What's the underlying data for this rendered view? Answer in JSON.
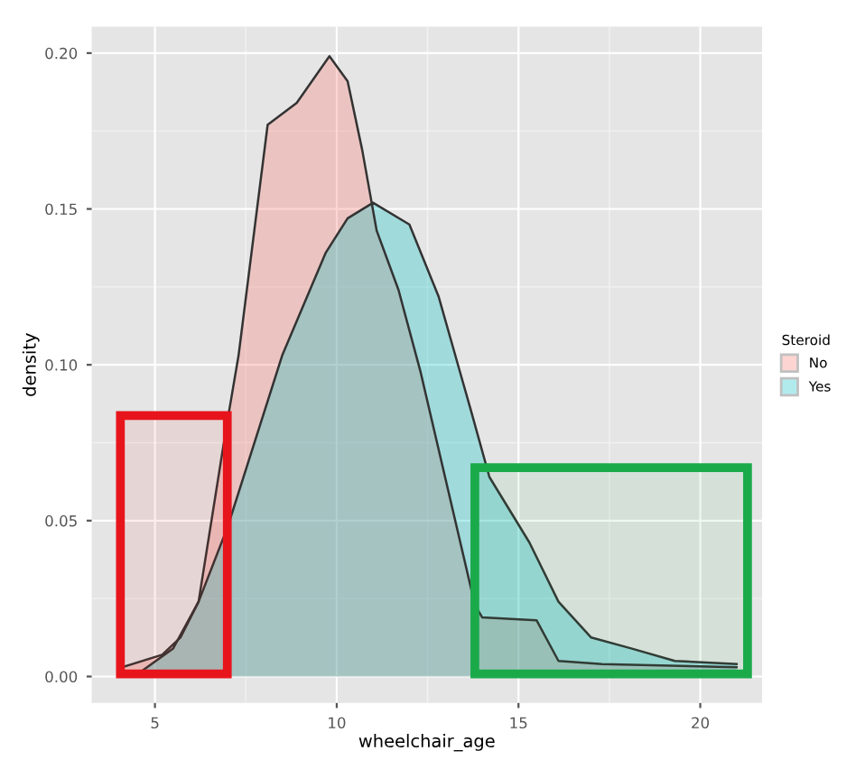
{
  "chart_data": {
    "type": "area",
    "xlabel": "wheelchair_age",
    "ylabel": "density",
    "legend_title": "Steroid",
    "legend": "right",
    "grid": true,
    "xlim": [
      3.26,
      21.7
    ],
    "ylim": [
      -0.0085,
      0.2085
    ],
    "xticks": [
      5,
      10,
      15,
      20
    ],
    "yticks": [
      {
        "value": 0,
        "label": "0.00"
      },
      {
        "value": 0.05,
        "label": "0.05"
      },
      {
        "value": 0.1,
        "label": "0.10"
      },
      {
        "value": 0.15,
        "label": "0.15"
      },
      {
        "value": 0.2,
        "label": "0.20"
      }
    ],
    "series": [
      {
        "name": "No",
        "color": "#f8766d",
        "x": [
          4.1,
          5.2,
          5.7,
          6.2,
          6.95,
          7.3,
          8.1,
          8.9,
          9.8,
          10.3,
          10.7,
          11.1,
          11.7,
          12.3,
          13.8,
          14.0,
          15.5,
          16.1,
          17.3,
          21.0
        ],
        "values": [
          0.003,
          0.007,
          0.0125,
          0.024,
          0.079,
          0.103,
          0.177,
          0.184,
          0.199,
          0.191,
          0.169,
          0.143,
          0.124,
          0.098,
          0.023,
          0.019,
          0.018,
          0.005,
          0.004,
          0.003
        ]
      },
      {
        "name": "Yes",
        "color": "#00bfc4",
        "x": [
          4.55,
          5.5,
          6.2,
          7.0,
          8.5,
          9.7,
          10.3,
          11.0,
          12.0,
          12.8,
          13.7,
          14.2,
          15.3,
          16.1,
          17.0,
          18.1,
          19.3,
          21.0
        ],
        "values": [
          0.001,
          0.009,
          0.024,
          0.048,
          0.103,
          0.136,
          0.147,
          0.152,
          0.145,
          0.122,
          0.085,
          0.064,
          0.043,
          0.024,
          0.0125,
          0.009,
          0.005,
          0.004
        ]
      }
    ],
    "bands": [
      {
        "axis": "x",
        "from": 4.05,
        "to": 6.99,
        "color": "#e8141c"
      },
      {
        "axis": "x",
        "from": 13.8,
        "to": 21.3,
        "color": "#1aaa4a"
      }
    ]
  }
}
